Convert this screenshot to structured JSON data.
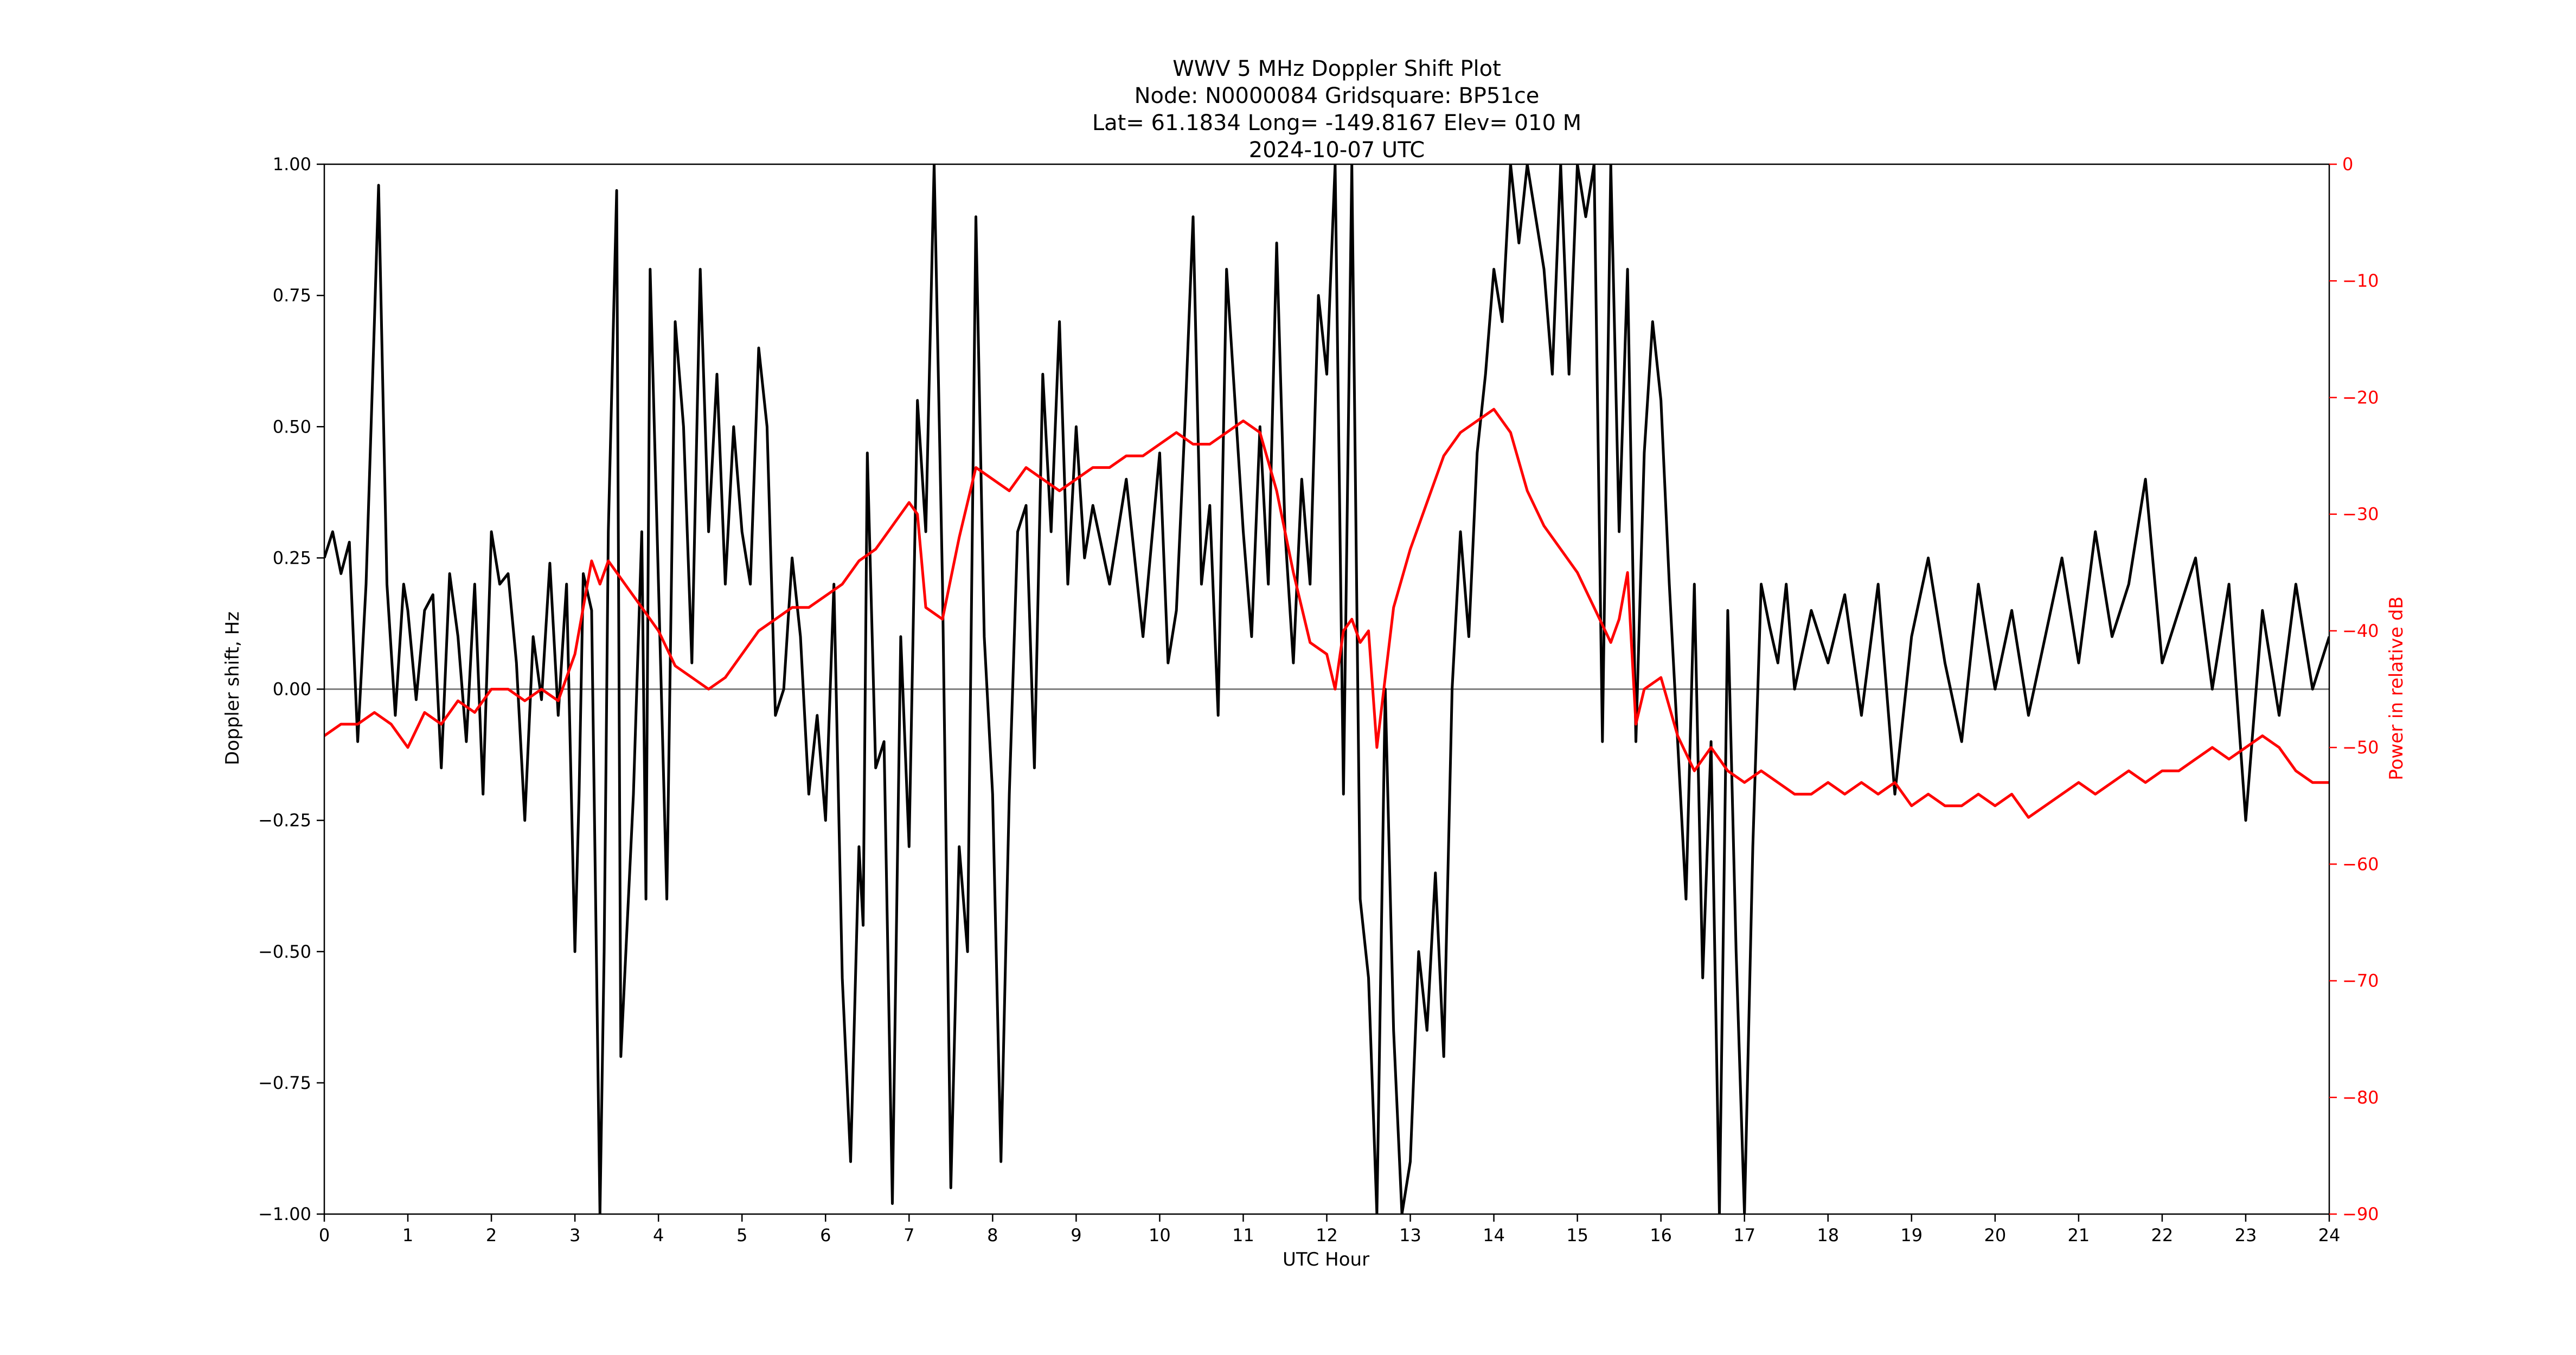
{
  "chart_data": {
    "type": "line",
    "title_lines": [
      "WWV 5 MHz Doppler Shift Plot",
      "Node:  N0000084     Gridsquare:  BP51ce",
      "Lat= 61.1834    Long= -149.8167    Elev= 010 M",
      "2024-10-07  UTC"
    ],
    "xlabel": "UTC Hour",
    "ylabel_left": "Doppler shift, Hz",
    "ylabel_right": "Power in relative dB",
    "xlim": [
      0,
      24
    ],
    "ylim_left": [
      -1.0,
      1.0
    ],
    "ylim_right": [
      -90,
      0
    ],
    "x_ticks": [
      "0",
      "1",
      "2",
      "3",
      "4",
      "5",
      "6",
      "7",
      "8",
      "9",
      "10",
      "11",
      "12",
      "13",
      "14",
      "15",
      "16",
      "17",
      "18",
      "19",
      "20",
      "21",
      "22",
      "23",
      "24"
    ],
    "y_left_ticks": [
      "1.00",
      "0.75",
      "0.50",
      "0.25",
      "0.00",
      "−0.25",
      "−0.50",
      "−0.75",
      "−1.00"
    ],
    "y_right_ticks": [
      "0",
      "−10",
      "−20",
      "−30",
      "−40",
      "−50",
      "−60",
      "−70",
      "−80",
      "−90"
    ],
    "grid": false,
    "zero_line": 0.0,
    "colors": {
      "doppler": "#000000",
      "power": "#ff0000",
      "zero_line": "#808080",
      "axes": "#000000"
    },
    "series": [
      {
        "axis": "left",
        "x": [
          0,
          0.1,
          0.2,
          0.3,
          0.4,
          0.5,
          0.6,
          0.65,
          0.75,
          0.85,
          0.95,
          1.0,
          1.1,
          1.2,
          1.3,
          1.4,
          1.5,
          1.6,
          1.7,
          1.8,
          1.9,
          2.0,
          2.1,
          2.2,
          2.3,
          2.4,
          2.5,
          2.6,
          2.7,
          2.8,
          2.9,
          3.0,
          3.05,
          3.1,
          3.2,
          3.3,
          3.35,
          3.4,
          3.5,
          3.55,
          3.7,
          3.8,
          3.85,
          3.9,
          4.0,
          4.1,
          4.2,
          4.3,
          4.4,
          4.5,
          4.6,
          4.7,
          4.8,
          4.9,
          5.0,
          5.1,
          5.2,
          5.3,
          5.4,
          5.5,
          5.6,
          5.7,
          5.8,
          5.9,
          6.0,
          6.1,
          6.2,
          6.3,
          6.4,
          6.45,
          6.5,
          6.6,
          6.7,
          6.8,
          6.9,
          7.0,
          7.1,
          7.2,
          7.3,
          7.4,
          7.5,
          7.6,
          7.7,
          7.8,
          7.9,
          8.0,
          8.1,
          8.2,
          8.3,
          8.4,
          8.5,
          8.6,
          8.7,
          8.8,
          8.9,
          9.0,
          9.1,
          9.2,
          9.4,
          9.6,
          9.8,
          10.0,
          10.1,
          10.2,
          10.3,
          10.4,
          10.5,
          10.6,
          10.7,
          10.8,
          11.0,
          11.1,
          11.2,
          11.3,
          11.4,
          11.5,
          11.6,
          11.7,
          11.8,
          11.9,
          12.0,
          12.1,
          12.2,
          12.3,
          12.4,
          12.5,
          12.6,
          12.7,
          12.8,
          12.9,
          13.0,
          13.1,
          13.2,
          13.3,
          13.4,
          13.5,
          13.6,
          13.7,
          13.8,
          13.9,
          14.0,
          14.1,
          14.2,
          14.3,
          14.4,
          14.5,
          14.6,
          14.7,
          14.8,
          14.9,
          15.0,
          15.1,
          15.2,
          15.3,
          15.4,
          15.5,
          15.6,
          15.7,
          15.8,
          15.9,
          16.0,
          16.1,
          16.2,
          16.3,
          16.4,
          16.5,
          16.6,
          16.7,
          16.8,
          16.9,
          17.0,
          17.1,
          17.2,
          17.3,
          17.4,
          17.5,
          17.6,
          17.8,
          18.0,
          18.2,
          18.4,
          18.6,
          18.8,
          19.0,
          19.2,
          19.4,
          19.6,
          19.8,
          20.0,
          20.2,
          20.4,
          20.6,
          20.8,
          21.0,
          21.2,
          21.4,
          21.6,
          21.8,
          22.0,
          22.2,
          22.4,
          22.6,
          22.8,
          23.0,
          23.2,
          23.4,
          23.6,
          23.8,
          24.0
        ],
        "y": [
          0.25,
          0.3,
          0.22,
          0.28,
          -0.1,
          0.2,
          0.7,
          0.96,
          0.2,
          -0.05,
          0.2,
          0.15,
          -0.02,
          0.15,
          0.18,
          -0.15,
          0.22,
          0.1,
          -0.1,
          0.2,
          -0.2,
          0.3,
          0.2,
          0.22,
          0.05,
          -0.25,
          0.1,
          -0.02,
          0.24,
          -0.05,
          0.2,
          -0.5,
          -0.2,
          0.22,
          0.15,
          -1.0,
          -0.5,
          0.3,
          0.95,
          -0.7,
          -0.2,
          0.3,
          -0.4,
          0.8,
          0.2,
          -0.4,
          0.7,
          0.5,
          0.05,
          0.8,
          0.3,
          0.6,
          0.2,
          0.5,
          0.3,
          0.2,
          0.65,
          0.5,
          -0.05,
          0.0,
          0.25,
          0.1,
          -0.2,
          -0.05,
          -0.25,
          0.2,
          -0.55,
          -0.9,
          -0.3,
          -0.45,
          0.45,
          -0.15,
          -0.1,
          -0.98,
          0.1,
          -0.3,
          0.55,
          0.3,
          1.0,
          0.2,
          -0.95,
          -0.3,
          -0.5,
          0.9,
          0.1,
          -0.2,
          -0.9,
          -0.2,
          0.3,
          0.35,
          -0.15,
          0.6,
          0.3,
          0.7,
          0.2,
          0.5,
          0.25,
          0.35,
          0.2,
          0.4,
          0.1,
          0.45,
          0.05,
          0.15,
          0.5,
          0.9,
          0.2,
          0.35,
          -0.05,
          0.8,
          0.3,
          0.1,
          0.5,
          0.2,
          0.85,
          0.3,
          0.05,
          0.4,
          0.2,
          0.75,
          0.6,
          1.0,
          -0.2,
          1.0,
          -0.4,
          -0.55,
          -1.0,
          0.0,
          -0.65,
          -1.0,
          -0.9,
          -0.5,
          -0.65,
          -0.35,
          -0.7,
          0.0,
          0.3,
          0.1,
          0.45,
          0.6,
          0.8,
          0.7,
          1.0,
          0.85,
          1.0,
          0.9,
          0.8,
          0.6,
          1.0,
          0.6,
          1.0,
          0.9,
          1.0,
          -0.1,
          1.0,
          0.3,
          0.8,
          -0.1,
          0.45,
          0.7,
          0.55,
          0.2,
          -0.1,
          -0.4,
          0.2,
          -0.55,
          -0.1,
          -1.0,
          0.15,
          -0.5,
          -1.0,
          -0.3,
          0.2,
          0.12,
          0.05,
          0.2,
          0.0,
          0.15,
          0.05,
          0.18,
          -0.05,
          0.2,
          -0.2,
          0.1,
          0.25,
          0.05,
          -0.1,
          0.2,
          0.0,
          0.15,
          -0.05,
          0.1,
          0.25,
          0.05,
          0.3,
          0.1,
          0.2,
          0.4,
          0.05,
          0.15,
          0.25,
          0.0,
          0.2,
          -0.25,
          0.15,
          -0.05,
          0.2,
          0.0,
          0.1
        ]
      },
      {
        "axis": "right",
        "x": [
          0,
          0.2,
          0.4,
          0.6,
          0.8,
          1.0,
          1.2,
          1.4,
          1.6,
          1.8,
          2.0,
          2.2,
          2.4,
          2.6,
          2.8,
          3.0,
          3.1,
          3.2,
          3.3,
          3.4,
          3.6,
          3.8,
          4.0,
          4.2,
          4.4,
          4.6,
          4.8,
          5.0,
          5.2,
          5.4,
          5.6,
          5.8,
          6.0,
          6.2,
          6.4,
          6.6,
          6.8,
          7.0,
          7.1,
          7.2,
          7.4,
          7.6,
          7.8,
          8.0,
          8.2,
          8.4,
          8.6,
          8.8,
          9.0,
          9.2,
          9.4,
          9.6,
          9.8,
          10.0,
          10.2,
          10.4,
          10.6,
          10.8,
          11.0,
          11.2,
          11.4,
          11.6,
          11.8,
          12.0,
          12.1,
          12.2,
          12.3,
          12.4,
          12.5,
          12.6,
          12.8,
          13.0,
          13.2,
          13.4,
          13.6,
          13.8,
          14.0,
          14.2,
          14.4,
          14.6,
          14.8,
          15.0,
          15.2,
          15.4,
          15.5,
          15.6,
          15.7,
          15.8,
          16.0,
          16.2,
          16.4,
          16.6,
          16.8,
          17.0,
          17.2,
          17.4,
          17.6,
          17.8,
          18.0,
          18.2,
          18.4,
          18.6,
          18.8,
          19.0,
          19.2,
          19.4,
          19.6,
          19.8,
          20.0,
          20.2,
          20.4,
          20.6,
          20.8,
          21.0,
          21.2,
          21.4,
          21.6,
          21.8,
          22.0,
          22.2,
          22.4,
          22.6,
          22.8,
          23.0,
          23.2,
          23.4,
          23.6,
          23.8,
          24.0
        ],
        "y": [
          -49,
          -48,
          -48,
          -47,
          -48,
          -50,
          -47,
          -48,
          -46,
          -47,
          -45,
          -45,
          -46,
          -45,
          -46,
          -42,
          -38,
          -34,
          -36,
          -34,
          -36,
          -38,
          -40,
          -43,
          -44,
          -45,
          -44,
          -42,
          -40,
          -39,
          -38,
          -38,
          -37,
          -36,
          -34,
          -33,
          -31,
          -29,
          -30,
          -38,
          -39,
          -32,
          -26,
          -27,
          -28,
          -26,
          -27,
          -28,
          -27,
          -26,
          -26,
          -25,
          -25,
          -24,
          -23,
          -24,
          -24,
          -23,
          -22,
          -23,
          -28,
          -35,
          -41,
          -42,
          -45,
          -40,
          -39,
          -41,
          -40,
          -50,
          -38,
          -33,
          -29,
          -25,
          -23,
          -22,
          -21,
          -23,
          -28,
          -31,
          -33,
          -35,
          -38,
          -41,
          -39,
          -35,
          -48,
          -45,
          -44,
          -49,
          -52,
          -50,
          -52,
          -53,
          -52,
          -53,
          -54,
          -54,
          -53,
          -54,
          -53,
          -54,
          -53,
          -55,
          -54,
          -55,
          -55,
          -54,
          -55,
          -54,
          -56,
          -55,
          -54,
          -53,
          -54,
          -53,
          -52,
          -53,
          -52,
          -52,
          -51,
          -50,
          -51,
          -50,
          -49,
          -50,
          -52,
          -53,
          -53
        ]
      }
    ]
  }
}
